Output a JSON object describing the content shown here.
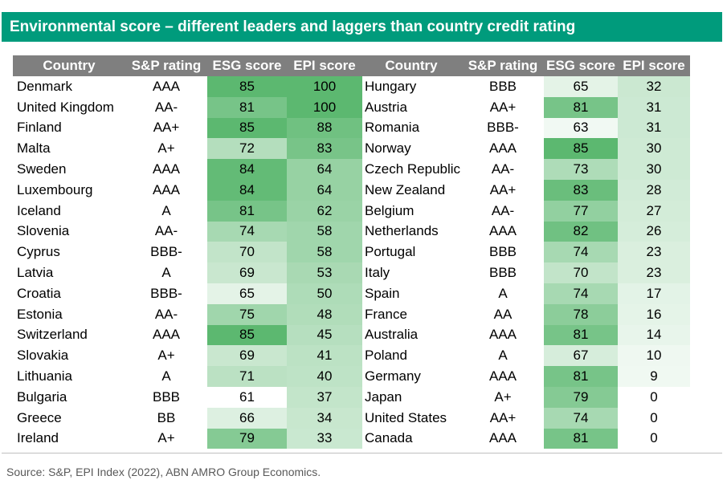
{
  "title": "Environmental score – different leaders and laggers than country credit rating",
  "headers": [
    "Country",
    "S&P rating",
    "ESG score",
    "EPI score"
  ],
  "colors": {
    "banner": "#009b7c",
    "header": "#7f7f7f",
    "heat_low": "#ffffff",
    "heat_high": "#5cb870"
  },
  "left_rows": [
    {
      "country": "Denmark",
      "rating": "AAA",
      "esg": "85",
      "epi": "100"
    },
    {
      "country": "United Kingdom",
      "rating": "AA-",
      "esg": "81",
      "epi": "100"
    },
    {
      "country": "Finland",
      "rating": "AA+",
      "esg": "85",
      "epi": "88"
    },
    {
      "country": "Malta",
      "rating": "A+",
      "esg": "72",
      "epi": "83"
    },
    {
      "country": "Sweden",
      "rating": "AAA",
      "esg": "84",
      "epi": "64"
    },
    {
      "country": "Luxembourg",
      "rating": "AAA",
      "esg": "84",
      "epi": "64"
    },
    {
      "country": "Iceland",
      "rating": "A",
      "esg": "81",
      "epi": "62"
    },
    {
      "country": "Slovenia",
      "rating": "AA-",
      "esg": "74",
      "epi": "58"
    },
    {
      "country": "Cyprus",
      "rating": "BBB-",
      "esg": "70",
      "epi": "58"
    },
    {
      "country": "Latvia",
      "rating": "A",
      "esg": "69",
      "epi": "53"
    },
    {
      "country": "Croatia",
      "rating": "BBB-",
      "esg": "65",
      "epi": "50"
    },
    {
      "country": "Estonia",
      "rating": "AA-",
      "esg": "75",
      "epi": "48"
    },
    {
      "country": "Switzerland",
      "rating": "AAA",
      "esg": "85",
      "epi": "45"
    },
    {
      "country": "Slovakia",
      "rating": "A+",
      "esg": "69",
      "epi": "41"
    },
    {
      "country": "Lithuania",
      "rating": "A",
      "esg": "71",
      "epi": "40"
    },
    {
      "country": "Bulgaria",
      "rating": "BBB",
      "esg": "61",
      "epi": "37"
    },
    {
      "country": "Greece",
      "rating": "BB",
      "esg": "66",
      "epi": "34"
    },
    {
      "country": "Ireland",
      "rating": "A+",
      "esg": "79",
      "epi": "33"
    }
  ],
  "right_rows": [
    {
      "country": "Hungary",
      "rating": "BBB",
      "esg": "65",
      "epi": "32"
    },
    {
      "country": "Austria",
      "rating": "AA+",
      "esg": "81",
      "epi": "31"
    },
    {
      "country": "Romania",
      "rating": "BBB-",
      "esg": "63",
      "epi": "31"
    },
    {
      "country": "Norway",
      "rating": "AAA",
      "esg": "85",
      "epi": "30"
    },
    {
      "country": "Czech Republic",
      "rating": "AA-",
      "esg": "73",
      "epi": "30"
    },
    {
      "country": "New Zealand",
      "rating": "AA+",
      "esg": "83",
      "epi": "28"
    },
    {
      "country": "Belgium",
      "rating": "AA-",
      "esg": "77",
      "epi": "27"
    },
    {
      "country": "Netherlands",
      "rating": "AAA",
      "esg": "82",
      "epi": "26"
    },
    {
      "country": "Portugal",
      "rating": "BBB",
      "esg": "74",
      "epi": "23"
    },
    {
      "country": "Italy",
      "rating": "BBB",
      "esg": "70",
      "epi": "23"
    },
    {
      "country": "Spain",
      "rating": "A",
      "esg": "74",
      "epi": "17"
    },
    {
      "country": "France",
      "rating": "AA",
      "esg": "78",
      "epi": "16"
    },
    {
      "country": "Australia",
      "rating": "AAA",
      "esg": "81",
      "epi": "14"
    },
    {
      "country": "Poland",
      "rating": "A",
      "esg": "67",
      "epi": "10"
    },
    {
      "country": "Germany",
      "rating": "AAA",
      "esg": "81",
      "epi": "9"
    },
    {
      "country": "Japan",
      "rating": "A+",
      "esg": "79",
      "epi": "0"
    },
    {
      "country": "United States",
      "rating": "AA+",
      "esg": "74",
      "epi": "0"
    },
    {
      "country": "Canada",
      "rating": "AAA",
      "esg": "81",
      "epi": "0"
    }
  ],
  "source": "Source: S&P, EPI Index (2022), ABN AMRO Group Economics."
}
